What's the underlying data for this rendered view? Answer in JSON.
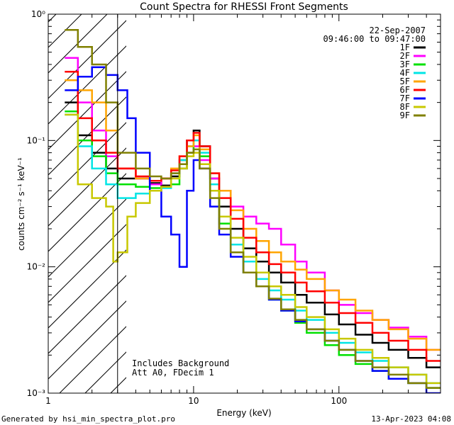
{
  "chart_data": {
    "type": "line",
    "title": "Count Spectra for RHESSI Front Segments",
    "xlabel": "Energy (keV)",
    "ylabel": "counts cm⁻² s⁻¹ keV⁻¹",
    "xscale": "log",
    "yscale": "log",
    "xlim": [
      1,
      500
    ],
    "ylim": [
      0.001,
      1
    ],
    "x_tick_labels": [
      "1",
      "10",
      "100"
    ],
    "y_tick_labels": [
      "10⁻³",
      "10⁻²",
      "10⁻¹",
      "10⁰"
    ],
    "date": "22-Sep-2007",
    "time_range": "09:46:00 to 09:47:00",
    "annotation_lines": [
      "Includes Background",
      "Att A0, FDecim 1"
    ],
    "hatched_region_max_keV": 3,
    "legend_position": "top-right",
    "series": [
      {
        "name": "1F",
        "color": "#000000",
        "points": [
          [
            1.3,
            0.2
          ],
          [
            1.6,
            0.11
          ],
          [
            2,
            0.08
          ],
          [
            2.5,
            0.06
          ],
          [
            3,
            0.05
          ],
          [
            4,
            0.05
          ],
          [
            5,
            0.046
          ],
          [
            6,
            0.044
          ],
          [
            7,
            0.052
          ],
          [
            8,
            0.07
          ],
          [
            9,
            0.1
          ],
          [
            10,
            0.12
          ],
          [
            11,
            0.09
          ],
          [
            13,
            0.05
          ],
          [
            15,
            0.03
          ],
          [
            18,
            0.02
          ],
          [
            22,
            0.014
          ],
          [
            27,
            0.011
          ],
          [
            33,
            0.009
          ],
          [
            40,
            0.0075
          ],
          [
            50,
            0.006
          ],
          [
            60,
            0.0052
          ],
          [
            80,
            0.0042
          ],
          [
            100,
            0.0035
          ],
          [
            130,
            0.0029
          ],
          [
            170,
            0.0025
          ],
          [
            220,
            0.0022
          ],
          [
            300,
            0.0019
          ],
          [
            400,
            0.0016
          ]
        ]
      },
      {
        "name": "2F",
        "color": "#ff00ff",
        "points": [
          [
            1.3,
            0.45
          ],
          [
            1.6,
            0.2
          ],
          [
            2,
            0.12
          ],
          [
            2.5,
            0.075
          ],
          [
            3,
            0.06
          ],
          [
            4,
            0.05
          ],
          [
            5,
            0.045
          ],
          [
            6,
            0.05
          ],
          [
            7,
            0.055
          ],
          [
            8,
            0.06
          ],
          [
            9,
            0.08
          ],
          [
            10,
            0.09
          ],
          [
            11,
            0.07
          ],
          [
            13,
            0.05
          ],
          [
            15,
            0.04
          ],
          [
            18,
            0.03
          ],
          [
            22,
            0.025
          ],
          [
            27,
            0.022
          ],
          [
            33,
            0.02
          ],
          [
            40,
            0.015
          ],
          [
            50,
            0.011
          ],
          [
            60,
            0.009
          ],
          [
            80,
            0.0065
          ],
          [
            100,
            0.005
          ],
          [
            130,
            0.0043
          ],
          [
            170,
            0.0038
          ],
          [
            220,
            0.0033
          ],
          [
            300,
            0.0028
          ],
          [
            400,
            0.0022
          ]
        ]
      },
      {
        "name": "3F",
        "color": "#00e000",
        "points": [
          [
            1.3,
            0.17
          ],
          [
            1.6,
            0.1
          ],
          [
            2,
            0.075
          ],
          [
            2.5,
            0.055
          ],
          [
            3,
            0.045
          ],
          [
            4,
            0.043
          ],
          [
            5,
            0.042
          ],
          [
            6,
            0.043
          ],
          [
            7,
            0.045
          ],
          [
            8,
            0.06
          ],
          [
            9,
            0.08
          ],
          [
            10,
            0.1
          ],
          [
            11,
            0.075
          ],
          [
            13,
            0.04
          ],
          [
            15,
            0.022
          ],
          [
            18,
            0.013
          ],
          [
            22,
            0.009
          ],
          [
            27,
            0.007
          ],
          [
            33,
            0.0055
          ],
          [
            40,
            0.0045
          ],
          [
            50,
            0.0036
          ],
          [
            60,
            0.003
          ],
          [
            80,
            0.0024
          ],
          [
            100,
            0.002
          ],
          [
            130,
            0.0017
          ],
          [
            170,
            0.0015
          ],
          [
            220,
            0.0013
          ],
          [
            300,
            0.0012
          ],
          [
            400,
            0.0011
          ]
        ]
      },
      {
        "name": "4F",
        "color": "#00e5e5",
        "points": [
          [
            1.3,
            0.16
          ],
          [
            1.6,
            0.09
          ],
          [
            2,
            0.06
          ],
          [
            2.5,
            0.045
          ],
          [
            3,
            0.035
          ],
          [
            4,
            0.038
          ],
          [
            5,
            0.04
          ],
          [
            6,
            0.042
          ],
          [
            7,
            0.055
          ],
          [
            8,
            0.07
          ],
          [
            9,
            0.09
          ],
          [
            10,
            0.1
          ],
          [
            11,
            0.08
          ],
          [
            13,
            0.045
          ],
          [
            15,
            0.025
          ],
          [
            18,
            0.015
          ],
          [
            22,
            0.011
          ],
          [
            27,
            0.008
          ],
          [
            33,
            0.0065
          ],
          [
            40,
            0.0055
          ],
          [
            50,
            0.0045
          ],
          [
            60,
            0.0038
          ],
          [
            80,
            0.003
          ],
          [
            100,
            0.0025
          ],
          [
            130,
            0.0021
          ],
          [
            170,
            0.0018
          ],
          [
            220,
            0.0016
          ],
          [
            300,
            0.0014
          ],
          [
            400,
            0.0012
          ]
        ]
      },
      {
        "name": "5F",
        "color": "#ffa500",
        "points": [
          [
            1.3,
            0.3
          ],
          [
            1.6,
            0.25
          ],
          [
            2,
            0.2
          ],
          [
            2.5,
            0.12
          ],
          [
            3,
            0.06
          ],
          [
            4,
            0.05
          ],
          [
            5,
            0.048
          ],
          [
            6,
            0.05
          ],
          [
            7,
            0.06
          ],
          [
            8,
            0.075
          ],
          [
            9,
            0.09
          ],
          [
            10,
            0.11
          ],
          [
            11,
            0.085
          ],
          [
            13,
            0.055
          ],
          [
            15,
            0.04
          ],
          [
            18,
            0.028
          ],
          [
            22,
            0.02
          ],
          [
            27,
            0.016
          ],
          [
            33,
            0.013
          ],
          [
            40,
            0.011
          ],
          [
            50,
            0.0095
          ],
          [
            60,
            0.008
          ],
          [
            80,
            0.0065
          ],
          [
            100,
            0.0055
          ],
          [
            130,
            0.0045
          ],
          [
            170,
            0.0038
          ],
          [
            220,
            0.0032
          ],
          [
            300,
            0.0027
          ],
          [
            400,
            0.0022
          ]
        ]
      },
      {
        "name": "6F",
        "color": "#ff0000",
        "points": [
          [
            1.3,
            0.35
          ],
          [
            1.6,
            0.15
          ],
          [
            2,
            0.1
          ],
          [
            2.5,
            0.08
          ],
          [
            3,
            0.06
          ],
          [
            4,
            0.052
          ],
          [
            5,
            0.048
          ],
          [
            6,
            0.05
          ],
          [
            7,
            0.058
          ],
          [
            8,
            0.075
          ],
          [
            9,
            0.1
          ],
          [
            10,
            0.115
          ],
          [
            11,
            0.09
          ],
          [
            13,
            0.055
          ],
          [
            15,
            0.035
          ],
          [
            18,
            0.024
          ],
          [
            22,
            0.017
          ],
          [
            27,
            0.013
          ],
          [
            33,
            0.0105
          ],
          [
            40,
            0.009
          ],
          [
            50,
            0.0075
          ],
          [
            60,
            0.0064
          ],
          [
            80,
            0.0052
          ],
          [
            100,
            0.0043
          ],
          [
            130,
            0.0036
          ],
          [
            170,
            0.003
          ],
          [
            220,
            0.0026
          ],
          [
            300,
            0.0022
          ],
          [
            400,
            0.0018
          ]
        ]
      },
      {
        "name": "7F",
        "color": "#0000ff",
        "points": [
          [
            1.3,
            0.25
          ],
          [
            1.6,
            0.32
          ],
          [
            2,
            0.38
          ],
          [
            2.5,
            0.33
          ],
          [
            3,
            0.25
          ],
          [
            3.5,
            0.15
          ],
          [
            4,
            0.08
          ],
          [
            5,
            0.04
          ],
          [
            6,
            0.025
          ],
          [
            7,
            0.018
          ],
          [
            8,
            0.01
          ],
          [
            9,
            0.04
          ],
          [
            10,
            0.07
          ],
          [
            11,
            0.06
          ],
          [
            13,
            0.03
          ],
          [
            15,
            0.018
          ],
          [
            18,
            0.012
          ],
          [
            22,
            0.009
          ],
          [
            27,
            0.007
          ],
          [
            33,
            0.0055
          ],
          [
            40,
            0.0045
          ],
          [
            50,
            0.0037
          ],
          [
            60,
            0.0032
          ],
          [
            80,
            0.0026
          ],
          [
            100,
            0.0022
          ],
          [
            130,
            0.0018
          ],
          [
            170,
            0.0015
          ],
          [
            220,
            0.0013
          ],
          [
            300,
            0.0012
          ],
          [
            400,
            0.001
          ]
        ]
      },
      {
        "name": "8F",
        "color": "#c8c800",
        "points": [
          [
            1.3,
            0.16
          ],
          [
            1.6,
            0.045
          ],
          [
            2,
            0.035
          ],
          [
            2.5,
            0.03
          ],
          [
            2.8,
            0.011
          ],
          [
            3,
            0.013
          ],
          [
            3.5,
            0.025
          ],
          [
            4,
            0.032
          ],
          [
            5,
            0.04
          ],
          [
            6,
            0.043
          ],
          [
            7,
            0.05
          ],
          [
            8,
            0.06
          ],
          [
            9,
            0.075
          ],
          [
            10,
            0.08
          ],
          [
            11,
            0.065
          ],
          [
            13,
            0.04
          ],
          [
            15,
            0.025
          ],
          [
            18,
            0.017
          ],
          [
            22,
            0.012
          ],
          [
            27,
            0.009
          ],
          [
            33,
            0.007
          ],
          [
            40,
            0.006
          ],
          [
            50,
            0.0048
          ],
          [
            60,
            0.004
          ],
          [
            80,
            0.0032
          ],
          [
            100,
            0.0027
          ],
          [
            130,
            0.0022
          ],
          [
            170,
            0.0019
          ],
          [
            220,
            0.0016
          ],
          [
            300,
            0.0014
          ],
          [
            400,
            0.0012
          ]
        ]
      },
      {
        "name": "9F",
        "color": "#808000",
        "points": [
          [
            1.3,
            0.75
          ],
          [
            1.6,
            0.55
          ],
          [
            2,
            0.4
          ],
          [
            2.5,
            0.2
          ],
          [
            3,
            0.08
          ],
          [
            4,
            0.06
          ],
          [
            5,
            0.052
          ],
          [
            6,
            0.05
          ],
          [
            7,
            0.055
          ],
          [
            8,
            0.065
          ],
          [
            9,
            0.08
          ],
          [
            10,
            0.085
          ],
          [
            11,
            0.06
          ],
          [
            13,
            0.035
          ],
          [
            15,
            0.02
          ],
          [
            18,
            0.013
          ],
          [
            22,
            0.009
          ],
          [
            27,
            0.007
          ],
          [
            33,
            0.0056
          ],
          [
            40,
            0.0046
          ],
          [
            50,
            0.0038
          ],
          [
            60,
            0.0032
          ],
          [
            80,
            0.0026
          ],
          [
            100,
            0.0022
          ],
          [
            130,
            0.0018
          ],
          [
            170,
            0.0016
          ],
          [
            220,
            0.0014
          ],
          [
            300,
            0.0012
          ],
          [
            400,
            0.0011
          ]
        ]
      }
    ]
  },
  "footer": {
    "left": "Generated by hsi_min_spectra_plot.pro",
    "right": "13-Apr-2023 04:08"
  }
}
